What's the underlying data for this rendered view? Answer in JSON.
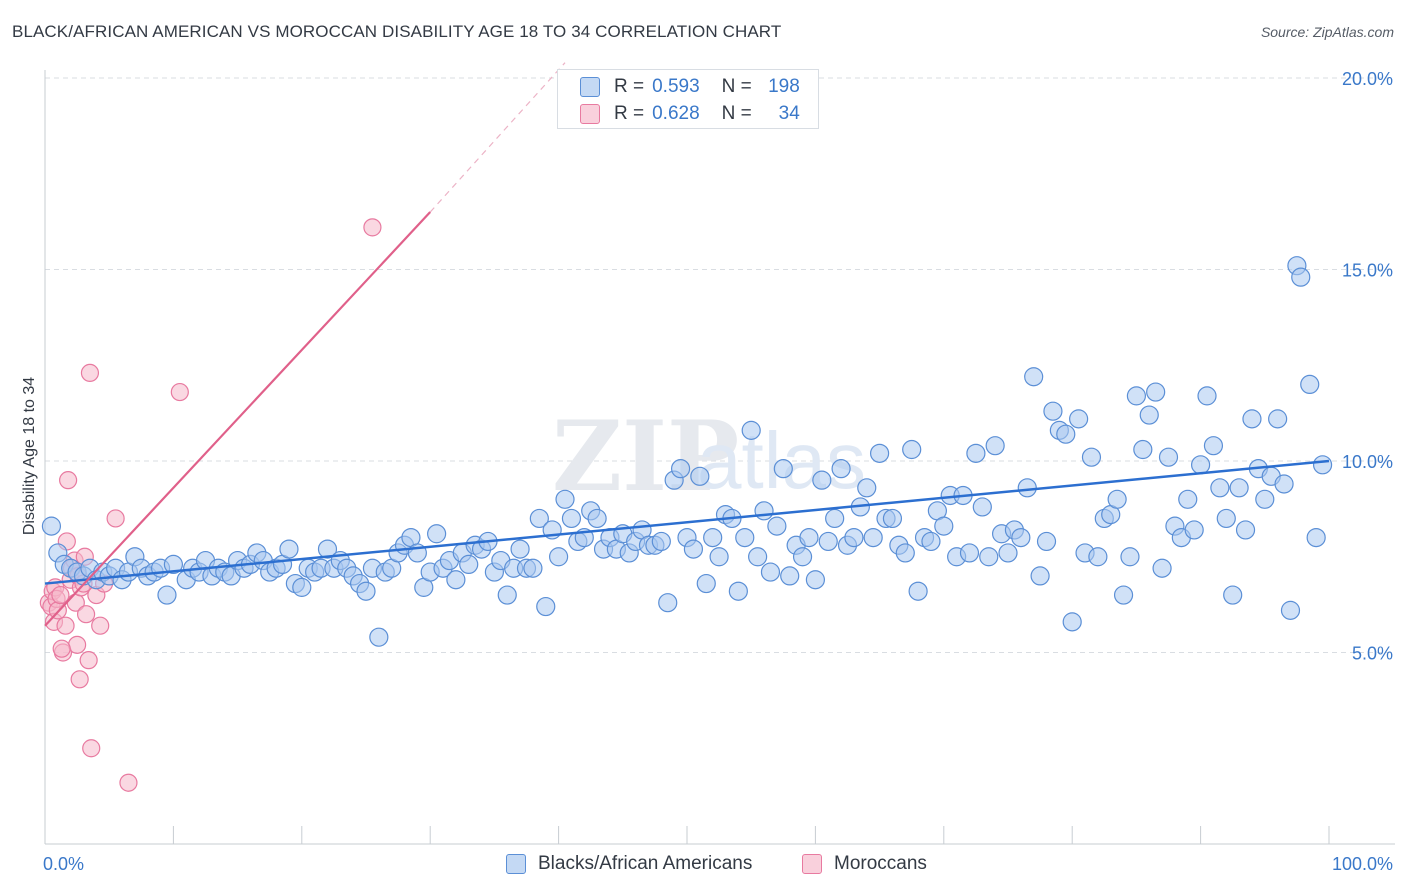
{
  "title": "BLACK/AFRICAN AMERICAN VS MOROCCAN DISABILITY AGE 18 TO 34 CORRELATION CHART",
  "source": "Source: ZipAtlas.com",
  "watermark": {
    "zip": "ZIP",
    "atlas": "atlas"
  },
  "colors": {
    "blue_fill": "#a9c8f0",
    "blue_stroke": "#5b8fd6",
    "blue_line": "#2c6fd0",
    "pink_fill": "#f5b8cb",
    "pink_stroke": "#e87aa0",
    "pink_line": "#e0608a",
    "axis_text": "#3a78c9",
    "grid": "#d9dde2"
  },
  "legend": {
    "rows": [
      {
        "r_label": "R =",
        "r_value": "0.593",
        "n_label": "N =",
        "n_value": "198"
      },
      {
        "r_label": "R =",
        "r_value": "0.628",
        "n_label": "N =",
        "n_value": "34"
      }
    ]
  },
  "bottom_legend": {
    "blue": "Blacks/African Americans",
    "pink": "Moroccans"
  },
  "chart_data": {
    "type": "scatter",
    "title": "BLACK/AFRICAN AMERICAN VS MOROCCAN DISABILITY AGE 18 TO 34 CORRELATION CHART",
    "xlabel": "",
    "ylabel": "Disability Age 18 to 34",
    "xlim": [
      0,
      100
    ],
    "ylim": [
      0,
      20
    ],
    "x_tick_labels": [
      "0.0%",
      "100.0%"
    ],
    "y_ticks": [
      5,
      10,
      15,
      20
    ],
    "y_tick_labels": [
      "5.0%",
      "10.0%",
      "15.0%",
      "20.0%"
    ],
    "grid": true,
    "legend_position": "top-center",
    "series": [
      {
        "name": "Blacks/African Americans",
        "r": 0.593,
        "n": 198,
        "trend": {
          "x": [
            0,
            100
          ],
          "y": [
            6.8,
            10.0
          ]
        },
        "points": [
          [
            0.5,
            8.3
          ],
          [
            1.0,
            7.6
          ],
          [
            1.5,
            7.3
          ],
          [
            2.0,
            7.2
          ],
          [
            2.5,
            7.1
          ],
          [
            3.0,
            7.0
          ],
          [
            3.5,
            7.2
          ],
          [
            4.0,
            6.9
          ],
          [
            4.5,
            7.1
          ],
          [
            5.0,
            7.0
          ],
          [
            5.5,
            7.2
          ],
          [
            6.0,
            6.9
          ],
          [
            6.5,
            7.1
          ],
          [
            7.0,
            7.5
          ],
          [
            7.5,
            7.2
          ],
          [
            8.0,
            7.0
          ],
          [
            8.5,
            7.1
          ],
          [
            9.0,
            7.2
          ],
          [
            9.5,
            6.5
          ],
          [
            10.0,
            7.3
          ],
          [
            11.0,
            6.9
          ],
          [
            11.5,
            7.2
          ],
          [
            12.0,
            7.1
          ],
          [
            12.5,
            7.4
          ],
          [
            13.0,
            7.0
          ],
          [
            13.5,
            7.2
          ],
          [
            14.0,
            7.1
          ],
          [
            14.5,
            7.0
          ],
          [
            15.0,
            7.4
          ],
          [
            15.5,
            7.2
          ],
          [
            16.0,
            7.3
          ],
          [
            16.5,
            7.6
          ],
          [
            17.0,
            7.4
          ],
          [
            17.5,
            7.1
          ],
          [
            18.0,
            7.2
          ],
          [
            18.5,
            7.3
          ],
          [
            19.0,
            7.7
          ],
          [
            19.5,
            6.8
          ],
          [
            20.0,
            6.7
          ],
          [
            20.5,
            7.2
          ],
          [
            21.0,
            7.1
          ],
          [
            21.5,
            7.2
          ],
          [
            22.0,
            7.7
          ],
          [
            22.5,
            7.2
          ],
          [
            23.0,
            7.4
          ],
          [
            23.5,
            7.2
          ],
          [
            24.0,
            7.0
          ],
          [
            24.5,
            6.8
          ],
          [
            25.0,
            6.6
          ],
          [
            25.5,
            7.2
          ],
          [
            26.0,
            5.4
          ],
          [
            26.5,
            7.1
          ],
          [
            27.0,
            7.2
          ],
          [
            27.5,
            7.6
          ],
          [
            28.0,
            7.8
          ],
          [
            28.5,
            8.0
          ],
          [
            29.0,
            7.6
          ],
          [
            29.5,
            6.7
          ],
          [
            30.0,
            7.1
          ],
          [
            30.5,
            8.1
          ],
          [
            31.0,
            7.2
          ],
          [
            31.5,
            7.4
          ],
          [
            32.0,
            6.9
          ],
          [
            32.5,
            7.6
          ],
          [
            33.0,
            7.3
          ],
          [
            33.5,
            7.8
          ],
          [
            34.0,
            7.7
          ],
          [
            34.5,
            7.9
          ],
          [
            35.0,
            7.1
          ],
          [
            35.5,
            7.4
          ],
          [
            36.0,
            6.5
          ],
          [
            36.5,
            7.2
          ],
          [
            37.0,
            7.7
          ],
          [
            37.5,
            7.2
          ],
          [
            38.0,
            7.2
          ],
          [
            38.5,
            8.5
          ],
          [
            39.0,
            6.2
          ],
          [
            39.5,
            8.2
          ],
          [
            40.0,
            7.5
          ],
          [
            40.5,
            9.0
          ],
          [
            41.0,
            8.5
          ],
          [
            41.5,
            7.9
          ],
          [
            42.0,
            8.0
          ],
          [
            42.5,
            8.7
          ],
          [
            43.0,
            8.5
          ],
          [
            43.5,
            7.7
          ],
          [
            44.0,
            8.0
          ],
          [
            44.5,
            7.7
          ],
          [
            45.0,
            8.1
          ],
          [
            45.5,
            7.6
          ],
          [
            46.0,
            7.9
          ],
          [
            46.5,
            8.2
          ],
          [
            47.0,
            7.8
          ],
          [
            47.5,
            7.8
          ],
          [
            48.0,
            7.9
          ],
          [
            48.5,
            6.3
          ],
          [
            49.0,
            9.5
          ],
          [
            49.5,
            9.8
          ],
          [
            50.0,
            8.0
          ],
          [
            50.5,
            7.7
          ],
          [
            51.0,
            9.6
          ],
          [
            51.5,
            6.8
          ],
          [
            52.0,
            8.0
          ],
          [
            52.5,
            7.5
          ],
          [
            53.0,
            8.6
          ],
          [
            53.5,
            8.5
          ],
          [
            54.0,
            6.6
          ],
          [
            54.5,
            8.0
          ],
          [
            55.0,
            10.8
          ],
          [
            55.5,
            7.5
          ],
          [
            56.0,
            8.7
          ],
          [
            56.5,
            7.1
          ],
          [
            57.0,
            8.3
          ],
          [
            57.5,
            9.8
          ],
          [
            58.0,
            7.0
          ],
          [
            58.5,
            7.8
          ],
          [
            59.0,
            7.5
          ],
          [
            59.5,
            8.0
          ],
          [
            60.0,
            6.9
          ],
          [
            60.5,
            9.5
          ],
          [
            61.0,
            7.9
          ],
          [
            61.5,
            8.5
          ],
          [
            62.0,
            9.8
          ],
          [
            62.5,
            7.8
          ],
          [
            63.0,
            8.0
          ],
          [
            63.5,
            8.8
          ],
          [
            64.0,
            9.3
          ],
          [
            64.5,
            8.0
          ],
          [
            65.0,
            10.2
          ],
          [
            65.5,
            8.5
          ],
          [
            66.0,
            8.5
          ],
          [
            66.5,
            7.8
          ],
          [
            67.0,
            7.6
          ],
          [
            67.5,
            10.3
          ],
          [
            68.0,
            6.6
          ],
          [
            68.5,
            8.0
          ],
          [
            69.0,
            7.9
          ],
          [
            69.5,
            8.7
          ],
          [
            70.0,
            8.3
          ],
          [
            70.5,
            9.1
          ],
          [
            71.0,
            7.5
          ],
          [
            71.5,
            9.1
          ],
          [
            72.0,
            7.6
          ],
          [
            72.5,
            10.2
          ],
          [
            73.0,
            8.8
          ],
          [
            73.5,
            7.5
          ],
          [
            74.0,
            10.4
          ],
          [
            74.5,
            8.1
          ],
          [
            75.0,
            7.6
          ],
          [
            75.5,
            8.2
          ],
          [
            76.0,
            8.0
          ],
          [
            76.5,
            9.3
          ],
          [
            77.0,
            12.2
          ],
          [
            77.5,
            7.0
          ],
          [
            78.0,
            7.9
          ],
          [
            78.5,
            11.3
          ],
          [
            79.0,
            10.8
          ],
          [
            79.5,
            10.7
          ],
          [
            80.0,
            5.8
          ],
          [
            80.5,
            11.1
          ],
          [
            81.0,
            7.6
          ],
          [
            81.5,
            10.1
          ],
          [
            82.0,
            7.5
          ],
          [
            82.5,
            8.5
          ],
          [
            83.0,
            8.6
          ],
          [
            83.5,
            9.0
          ],
          [
            84.0,
            6.5
          ],
          [
            84.5,
            7.5
          ],
          [
            85.0,
            11.7
          ],
          [
            85.5,
            10.3
          ],
          [
            86.0,
            11.2
          ],
          [
            86.5,
            11.8
          ],
          [
            87.0,
            7.2
          ],
          [
            87.5,
            10.1
          ],
          [
            88.0,
            8.3
          ],
          [
            88.5,
            8.0
          ],
          [
            89.0,
            9.0
          ],
          [
            89.5,
            8.2
          ],
          [
            90.0,
            9.9
          ],
          [
            90.5,
            11.7
          ],
          [
            91.0,
            10.4
          ],
          [
            91.5,
            9.3
          ],
          [
            92.0,
            8.5
          ],
          [
            92.5,
            6.5
          ],
          [
            93.0,
            9.3
          ],
          [
            93.5,
            8.2
          ],
          [
            94.0,
            11.1
          ],
          [
            94.5,
            9.8
          ],
          [
            95.0,
            9.0
          ],
          [
            95.5,
            9.6
          ],
          [
            96.0,
            11.1
          ],
          [
            96.5,
            9.4
          ],
          [
            97.0,
            6.1
          ],
          [
            97.5,
            15.1
          ],
          [
            97.8,
            14.8
          ],
          [
            98.5,
            12.0
          ],
          [
            99.0,
            8.0
          ],
          [
            99.5,
            9.9
          ]
        ]
      },
      {
        "name": "Moroccans",
        "r": 0.628,
        "n": 34,
        "trend": {
          "x": [
            0,
            30
          ],
          "y": [
            5.7,
            16.5
          ],
          "dashed_to": {
            "x": 40.5,
            "y": 20.4
          }
        },
        "points": [
          [
            0.3,
            6.3
          ],
          [
            0.5,
            6.2
          ],
          [
            0.6,
            6.6
          ],
          [
            0.7,
            5.8
          ],
          [
            0.8,
            6.7
          ],
          [
            0.9,
            6.4
          ],
          [
            1.0,
            6.1
          ],
          [
            1.2,
            6.5
          ],
          [
            1.4,
            5.0
          ],
          [
            1.6,
            5.7
          ],
          [
            1.7,
            7.9
          ],
          [
            1.8,
            9.5
          ],
          [
            2.0,
            6.9
          ],
          [
            2.1,
            7.2
          ],
          [
            2.3,
            7.4
          ],
          [
            2.4,
            6.3
          ],
          [
            2.5,
            5.2
          ],
          [
            2.6,
            7.0
          ],
          [
            2.7,
            4.3
          ],
          [
            2.8,
            6.7
          ],
          [
            3.0,
            6.8
          ],
          [
            3.1,
            7.5
          ],
          [
            3.2,
            6.0
          ],
          [
            3.4,
            4.8
          ],
          [
            3.5,
            12.3
          ],
          [
            3.6,
            2.5
          ],
          [
            4.0,
            6.5
          ],
          [
            4.3,
            5.7
          ],
          [
            4.6,
            6.8
          ],
          [
            5.5,
            8.5
          ],
          [
            6.5,
            1.6
          ],
          [
            10.5,
            11.8
          ],
          [
            25.5,
            16.1
          ],
          [
            1.3,
            5.1
          ]
        ]
      }
    ]
  }
}
